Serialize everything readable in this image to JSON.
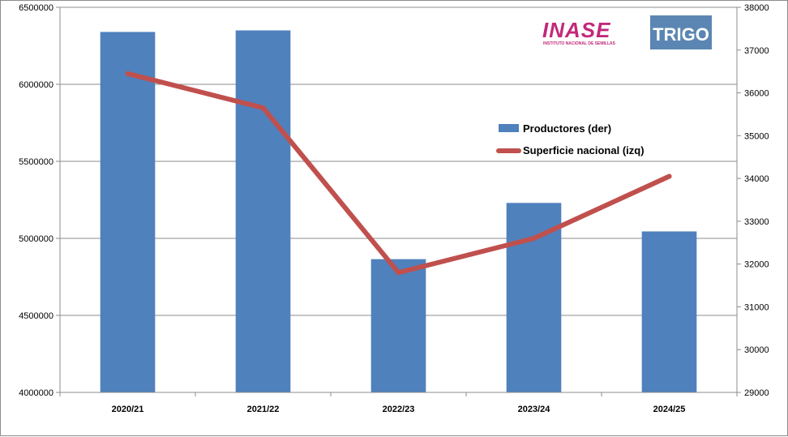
{
  "chart_data": {
    "type": "bar",
    "categories": [
      "2020/21",
      "2021/22",
      "2022/23",
      "2023/24",
      "2024/25"
    ],
    "series": [
      {
        "name": "Productores (der)",
        "type": "bar",
        "axis": "left",
        "color": "#4F81BD",
        "values": [
          6340000,
          6350000,
          4865000,
          5230000,
          5045000
        ]
      },
      {
        "name": "Superficie nacional (izq)",
        "type": "line",
        "axis": "right",
        "color": "#C0504D",
        "values": [
          36450,
          35650,
          31800,
          32600,
          34050
        ]
      }
    ],
    "y_left": {
      "min": 4000000,
      "max": 6500000,
      "ticks": [
        "4000000",
        "4500000",
        "5000000",
        "5500000",
        "6000000",
        "6500000"
      ]
    },
    "y_right": {
      "min": 29000,
      "max": 38000,
      "ticks": [
        "29000",
        "30000",
        "31000",
        "32000",
        "33000",
        "34000",
        "35000",
        "36000",
        "37000",
        "38000"
      ]
    },
    "grid": true,
    "legend": "right-middle"
  },
  "logos": {
    "inase": {
      "text": "INASE",
      "subtitle": "INSTITUTO NACIONAL DE SEMILLAS",
      "color": "#C2287A"
    },
    "crop": {
      "text": "TRIGO",
      "bg": "#5B86B3"
    }
  }
}
